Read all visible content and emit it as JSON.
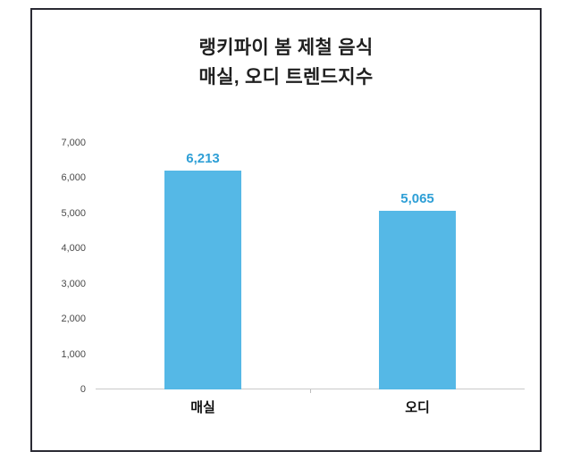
{
  "chart_data": {
    "type": "bar",
    "title_line1": "랭키파이 봄 제철 음식",
    "title_line2": "매실, 오디 트렌드지수",
    "categories": [
      "매실",
      "오디"
    ],
    "values": [
      6213,
      5065
    ],
    "value_labels": [
      "6,213",
      "5,065"
    ],
    "ylim": [
      0,
      7000
    ],
    "yticks": [
      {
        "value": 0,
        "label": "0"
      },
      {
        "value": 1000,
        "label": "1,000"
      },
      {
        "value": 2000,
        "label": "2,000"
      },
      {
        "value": 3000,
        "label": "3,000"
      },
      {
        "value": 4000,
        "label": "4,000"
      },
      {
        "value": 5000,
        "label": "5,000"
      },
      {
        "value": 6000,
        "label": "6,000"
      },
      {
        "value": 7000,
        "label": "7,000"
      }
    ],
    "grid": false,
    "legend": false
  },
  "colors": {
    "bar": "#55B8E6",
    "value_label": "#2E9FD6",
    "title": "#1F1F1F",
    "axis_text": "#4A4A4A",
    "category_label": "#111111",
    "frame_border": "#2A2A33",
    "baseline": "#C9C9C9",
    "background": "#FFFFFF"
  }
}
